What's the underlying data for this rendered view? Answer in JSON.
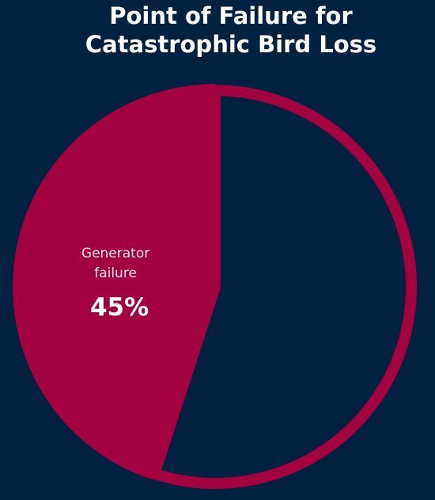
{
  "chart_data": {
    "type": "pie",
    "title": "Point of Failure for Catastrophic Bird Loss",
    "categories": [
      null,
      "Generator failure"
    ],
    "values": [
      55,
      45
    ],
    "value_labels": [
      null,
      "45%"
    ],
    "colors": [
      "#03223f",
      "#a3003f"
    ]
  }
}
